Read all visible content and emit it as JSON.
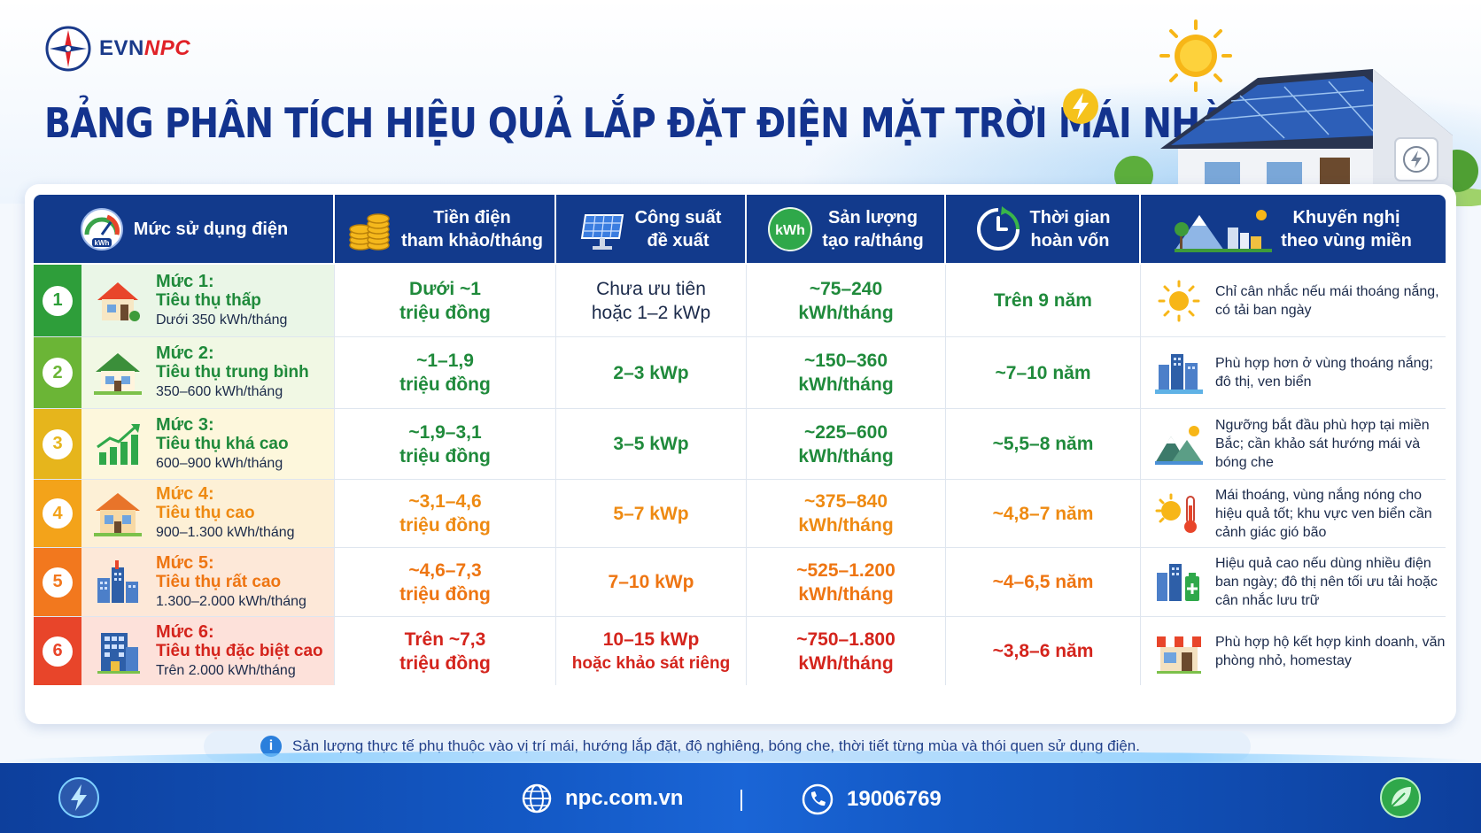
{
  "brand": {
    "part1": "EVN",
    "part2": "NPC"
  },
  "title": "BẢNG PHÂN TÍCH HIỆU QUẢ LẮP ĐẶT ĐIỆN MẶT TRỜI MÁI NHÀ",
  "headers": {
    "h1": [
      "Mức sử dụng điện"
    ],
    "h2": [
      "Tiền điện",
      "tham khảo/tháng"
    ],
    "h3": [
      "Công suất",
      "đề xuất"
    ],
    "h4": [
      "Sản lượng",
      "tạo ra/tháng"
    ],
    "h5": [
      "Thời gian",
      "hoàn vốn"
    ],
    "h6": [
      "Khuyến nghị",
      "theo vùng miền"
    ],
    "kwh_badge": "kWh",
    "gauge_label": "kWh"
  },
  "rows": [
    {
      "num": "1",
      "title": "Mức 1:",
      "sub": "Tiêu thụ thấp",
      "range": "Dưới 350 kWh/tháng",
      "cost": [
        "Dưới ~1",
        "triệu đồng"
      ],
      "power": [
        "Chưa ưu tiên",
        "hoặc 1–2 kWp"
      ],
      "output": [
        "~75–240",
        "kWh/tháng"
      ],
      "payback": "Trên 9 năm",
      "rec": "Chỉ cân nhắc nếu mái thoáng nắng, có tải ban ngày",
      "rec_icon": "sun-icon"
    },
    {
      "num": "2",
      "title": "Mức 2:",
      "sub": "Tiêu thụ trung bình",
      "range": "350–600 kWh/tháng",
      "cost": [
        "~1–1,9",
        "triệu đồng"
      ],
      "power": [
        "2–3 kWp"
      ],
      "output": [
        "~150–360",
        "kWh/tháng"
      ],
      "payback": "~7–10 năm",
      "rec": "Phù hợp hơn ở vùng thoáng nắng; đô thị, ven biển",
      "rec_icon": "city-icon"
    },
    {
      "num": "3",
      "title": "Mức 3:",
      "sub": "Tiêu thụ khá cao",
      "range": "600–900 kWh/tháng",
      "cost": [
        "~1,9–3,1",
        "triệu đồng"
      ],
      "power": [
        "3–5 kWp"
      ],
      "output": [
        "~225–600",
        "kWh/tháng"
      ],
      "payback": "~5,5–8 năm",
      "rec": "Ngưỡng bắt đầu phù hợp tại miền Bắc; cần khảo sát hướng mái và bóng che",
      "rec_icon": "mountain-icon"
    },
    {
      "num": "4",
      "title": "Mức 4:",
      "sub": "Tiêu thụ cao",
      "range": "900–1.300 kWh/tháng",
      "cost": [
        "~3,1–4,6",
        "triệu đồng"
      ],
      "power": [
        "5–7 kWp"
      ],
      "output": [
        "~375–840",
        "kWh/tháng"
      ],
      "payback": "~4,8–7 năm",
      "rec": "Mái thoáng, vùng nắng nóng cho hiệu quả tốt; khu vực ven biển cần cảnh giác gió bão",
      "rec_icon": "thermometer-sun-icon"
    },
    {
      "num": "5",
      "title": "Mức 5:",
      "sub": "Tiêu thụ rất cao",
      "range": "1.300–2.000 kWh/tháng",
      "cost": [
        "~4,6–7,3",
        "triệu đồng"
      ],
      "power": [
        "7–10 kWp"
      ],
      "output": [
        "~525–1.200",
        "kWh/tháng"
      ],
      "payback": "~4–6,5 năm",
      "rec": "Hiệu quả cao nếu dùng nhiều điện ban ngày; đô thị nên tối ưu tải hoặc cân nhắc lưu trữ",
      "rec_icon": "city-battery-icon"
    },
    {
      "num": "6",
      "title": "Mức 6:",
      "sub": "Tiêu thụ đặc biệt cao",
      "range": "Trên 2.000 kWh/tháng",
      "cost": [
        "Trên ~7,3",
        "triệu đồng"
      ],
      "power": [
        "10–15 kWp",
        "hoặc khảo sát riêng"
      ],
      "output": [
        "~750–1.800",
        "kWh/tháng"
      ],
      "payback": "~3,8–6 năm",
      "rec": "Phù hợp hộ kết hợp kinh doanh, văn phòng nhỏ, homestay",
      "rec_icon": "shop-icon"
    }
  ],
  "colors": {
    "row_colors": [
      "#2e9e3a",
      "#6bb536",
      "#e6b51c",
      "#f3a31a",
      "#f2781e",
      "#e8452a"
    ],
    "row_bg": [
      "#eaf6e7",
      "#f1f8e4",
      "#fdf7dc",
      "#fdf0d6",
      "#fde8d8",
      "#fde1da"
    ],
    "value_colors": [
      "#1f8a3b",
      "#1f8a3b",
      "#1f8a3b",
      "#ee8a12",
      "#ee7512",
      "#d4241c"
    ],
    "header_bg": "#123a8c"
  },
  "note": "Sản lượng thực tế phụ thuộc vào vị trí mái, hướng lắp đặt, độ nghiêng, bóng che, thời tiết từng mùa và thói quen sử dụng điện.",
  "note_icon": "i",
  "footer": {
    "website": "npc.com.vn",
    "hotline": "19006769"
  }
}
